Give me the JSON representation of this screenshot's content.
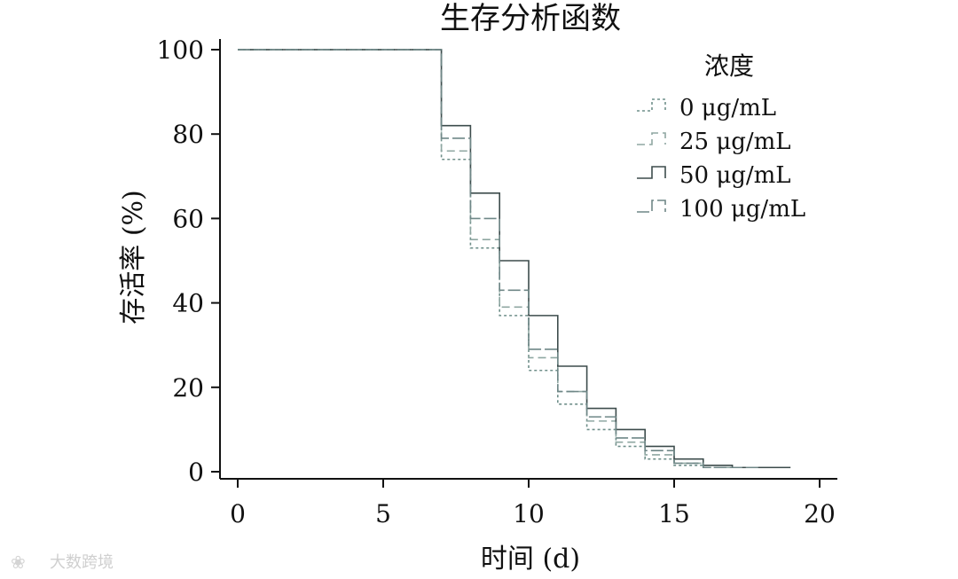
{
  "chart_data": {
    "type": "line",
    "step": true,
    "title": "生存分析函数",
    "xlabel": "时间 (d)",
    "ylabel": "存活率 (%)",
    "xlim": [
      0,
      20
    ],
    "ylim": [
      0,
      100
    ],
    "xticks": [
      0,
      5,
      10,
      15,
      20
    ],
    "yticks": [
      0,
      20,
      40,
      60,
      80,
      100
    ],
    "grid": false,
    "legend": {
      "title": "浓度",
      "position": "top-right"
    },
    "series": [
      {
        "name": "0 μg/mL",
        "color": "#6f8f8a",
        "dash": "3,3",
        "x": [
          0,
          7,
          8,
          9,
          10,
          11,
          12,
          13,
          14,
          15,
          16,
          17
        ],
        "y": [
          100,
          74,
          53,
          37,
          24,
          16,
          10,
          6,
          3,
          1.5,
          1,
          1
        ]
      },
      {
        "name": "25 μg/mL",
        "color": "#8fa7a2",
        "dash": "9,5",
        "x": [
          0,
          7,
          8,
          9,
          10,
          11,
          12,
          13,
          14,
          15,
          16,
          17
        ],
        "y": [
          100,
          76,
          55,
          39,
          27,
          19,
          12,
          7,
          4,
          2,
          1,
          1
        ]
      },
      {
        "name": "50 μg/mL",
        "color": "#3d4c4c",
        "dash": "",
        "x": [
          0,
          7,
          8,
          9,
          10,
          11,
          12,
          13,
          14,
          15,
          16,
          17,
          18
        ],
        "y": [
          100,
          82,
          66,
          50,
          37,
          25,
          15,
          10,
          6,
          3,
          1.5,
          1,
          1
        ]
      },
      {
        "name": "100 μg/mL",
        "color": "#6f8787",
        "dash": "14,4",
        "x": [
          0,
          7,
          8,
          9,
          10,
          11,
          12,
          13,
          14,
          15,
          16,
          17
        ],
        "y": [
          100,
          79,
          60,
          43,
          29,
          19,
          13,
          8,
          5,
          2,
          1,
          1
        ]
      }
    ]
  },
  "watermark": {
    "text": "大数跨境"
  }
}
